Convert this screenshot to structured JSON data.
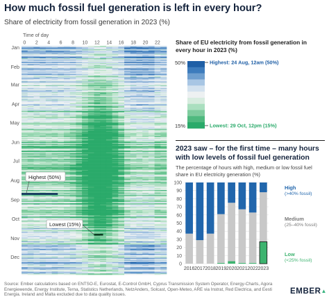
{
  "header": {
    "title": "How much fossil fuel generation is left in every hour?",
    "subtitle": "Share of electricity from fossil generation in 2023 (%)"
  },
  "colors": {
    "dark_blue": "#1f5fa6",
    "light_blue": "#b9d3ea",
    "pale": "#e6eef2",
    "light_green": "#a6ddbc",
    "dark_green": "#2aaa6a",
    "bar_high": "#2166ac",
    "bar_medium": "#c8c8c8",
    "bar_low": "#3db36f"
  },
  "chart_data": [
    {
      "type": "heatmap",
      "title": "Share of electricity from fossil generation in 2023 (%)",
      "xlabel": "Time of day",
      "x_ticks": [
        "0",
        "2",
        "4",
        "6",
        "8",
        "10",
        "12",
        "14",
        "16",
        "18",
        "20",
        "22"
      ],
      "y_ticks": [
        "Jan",
        "Feb",
        "Mar",
        "Apr",
        "May",
        "Jun",
        "Jul",
        "Aug",
        "Sep",
        "Oct",
        "Nov",
        "Dec"
      ],
      "rows": 365,
      "columns": 24,
      "value_range_percent": [
        15,
        50
      ],
      "annotations": [
        {
          "label": "Highest (50%)",
          "day": 236,
          "hour": 0,
          "value": 50
        },
        {
          "label": "Lowest (15%)",
          "day": 301,
          "hour": 12,
          "value": 15
        }
      ]
    },
    {
      "type": "legend",
      "title": "Share of EU electricity from fossil generation in every hour in 2023 (%)",
      "max_label": "50%",
      "min_label": "15%",
      "highest_label": "Highest: 24 Aug, 12am (50%)",
      "lowest_label": "Lowest: 29 Oct, 12pm (15%)",
      "swatches": [
        "#1f5fa6",
        "#3d7cbd",
        "#6f9fcf",
        "#a8c6e4",
        "#d3e2ef",
        "#edf1f2",
        "#d7ecdf",
        "#aadfbf",
        "#7fcc9f",
        "#4fb97f",
        "#2aaa6a"
      ]
    },
    {
      "type": "bar",
      "title": "2023 saw – for the first time – many hours with low levels of fossil fuel generation",
      "subtitle": "The percentage of hours with high, medium or low fossil fuel share in EU electricity generation (%)",
      "categories": [
        "2016",
        "2017",
        "2018",
        "2019",
        "2020",
        "2021",
        "2022",
        "2023"
      ],
      "ylim": [
        0,
        100
      ],
      "yticks": [
        "0",
        "10",
        "20",
        "30",
        "40",
        "50",
        "60",
        "70",
        "80",
        "90",
        "100"
      ],
      "series": [
        {
          "name": "Low",
          "sub": "(<25% fossil)",
          "color": "#3db36f",
          "values": [
            0,
            0,
            0,
            1,
            3,
            1,
            1,
            27
          ]
        },
        {
          "name": "Medium",
          "sub": "(25–40% fossil)",
          "color": "#c8c8c8",
          "values": [
            37,
            29,
            37,
            60,
            72,
            66,
            62,
            61
          ]
        },
        {
          "name": "High",
          "sub": "(>40% fossil)",
          "color": "#2166ac",
          "values": [
            63,
            71,
            63,
            39,
            25,
            33,
            37,
            12
          ]
        }
      ]
    }
  ],
  "footer": {
    "source": "Source: Ember calculations based on ENTSO-E, Eurostat, E-Control GmbH, Cyprus Transmission System Operator, Energy-Charts, Agora Energiewende, Energy Institute, Terna, Statistics Netherlands, NetzAnders, Solcast, Open-Meteo, ARE via Instrat, Red Electrica, and Eesti Energia. Ireland and Malta excluded due to data quality issues.",
    "logo": "EMBER"
  }
}
